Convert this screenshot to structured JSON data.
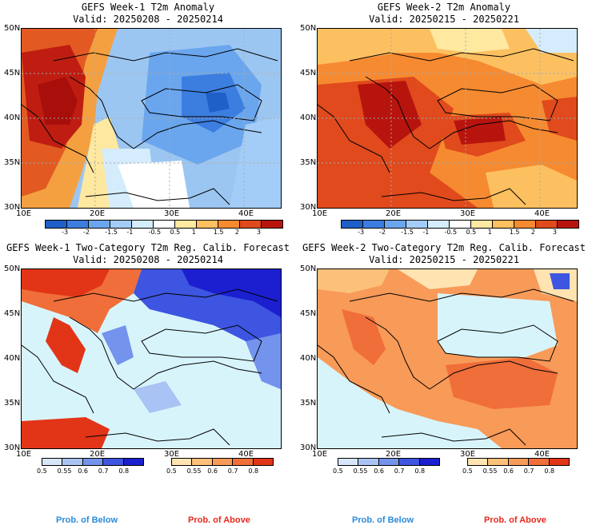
{
  "panels": [
    {
      "title": "GEFS Week-1 T2m Anomaly",
      "valid": "Valid: 20250208 - 20250214"
    },
    {
      "title": "GEFS Week-2 T2m Anomaly",
      "valid": "Valid: 20250215 - 20250221"
    },
    {
      "title": "GEFS Week-1 Two-Category T2m Reg. Calib. Forecast",
      "valid": "Valid: 20250208 - 20250214"
    },
    {
      "title": "GEFS Week-2 Two-Category T2m Reg. Calib. Forecast",
      "valid": "Valid: 20250215 - 20250221"
    }
  ],
  "lat_labels": [
    "50N",
    "45N",
    "40N",
    "35N",
    "30N"
  ],
  "lon_labels": [
    "10E",
    "20E",
    "30E",
    "40E"
  ],
  "anomaly_scale": {
    "labels": [
      "-3",
      "-2",
      "-1.5",
      "-1",
      "-0.5",
      "0.5",
      "1",
      "1.5",
      "2",
      "3"
    ],
    "colors": [
      "#1f5fc8",
      "#3c7ee0",
      "#6aa6ee",
      "#a3cdf7",
      "#d4ecfc",
      "#ffffff",
      "#ffe8a0",
      "#fdc060",
      "#f68a30",
      "#e04a1c",
      "#b8140e"
    ]
  },
  "prob_below_scale": {
    "labels": [
      "0.5",
      "0.55",
      "0.6",
      "0.7",
      "0.8"
    ],
    "colors": [
      "#d8e6fb",
      "#a9c3f4",
      "#7393ec",
      "#3d55e0",
      "#1b1fcf"
    ]
  },
  "prob_above_scale": {
    "labels": [
      "0.5",
      "0.55",
      "0.6",
      "0.7",
      "0.8"
    ],
    "colors": [
      "#ffe3b0",
      "#fcc07a",
      "#f89a58",
      "#f06e3a",
      "#e23518"
    ]
  },
  "legend": {
    "below": "Prob. of Below",
    "above": "Prob. of Above"
  },
  "colors": {
    "below_text": "#2a8ad8",
    "above_text": "#e8281c",
    "sea_light": "#d8f4fb"
  }
}
